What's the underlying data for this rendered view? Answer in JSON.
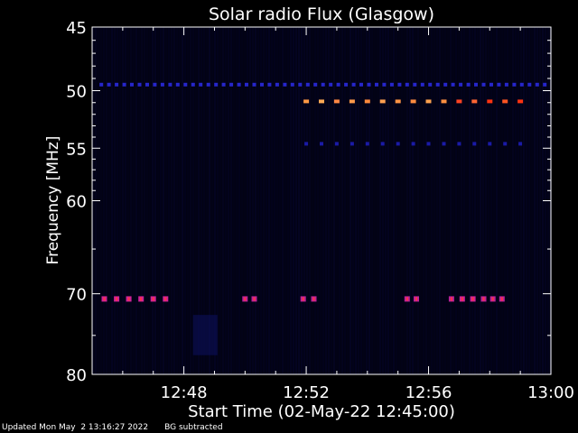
{
  "chart_data": {
    "type": "heatmap",
    "title": "Solar radio Flux (Glasgow)",
    "ylabel": "Frequency [MHz]",
    "xlabel": "Start Time (02-May-22 12:45:00)",
    "x_range_minutes": [
      0,
      15
    ],
    "x_ticks": [
      {
        "label": "12:48",
        "minute": 3
      },
      {
        "label": "12:52",
        "minute": 7
      },
      {
        "label": "12:56",
        "minute": 11
      },
      {
        "label": "13:00",
        "minute": 15
      }
    ],
    "y_range_mhz": [
      45,
      80
    ],
    "y_scale": "log",
    "y_ticks": [
      45,
      50,
      55,
      60,
      70,
      80
    ],
    "series": [
      {
        "frequency_mhz": 49.5,
        "t_start_min": 0.3,
        "t_end_min": 15,
        "step_min": 0.25,
        "color": "#2626cc"
      },
      {
        "frequency_mhz": 54.6,
        "t_start_min": 7.0,
        "t_end_min": 14.0,
        "step_min": 0.5,
        "color": "#1a1aa6"
      },
      {
        "frequency_mhz": 50.9,
        "t_start_min": 7.0,
        "t_end_min": 14.0,
        "step_min": 0.5,
        "colors": [
          "#ff9944",
          "#ffaa55",
          "#ff8844",
          "#ff9a4a",
          "#ff8a3c",
          "#ffa050",
          "#ff9444",
          "#ff8c40",
          "#ffa24e",
          "#ff9040",
          "#ff4422",
          "#ff6633",
          "#ff3311",
          "#ff5522",
          "#ff3311"
        ]
      }
    ],
    "bursts_70mhz": [
      {
        "t_min": 0.4,
        "color": "#cc2299"
      },
      {
        "t_min": 0.8,
        "color": "#cc2299"
      },
      {
        "t_min": 1.2,
        "color": "#cc2299"
      },
      {
        "t_min": 1.6,
        "color": "#cc2299"
      },
      {
        "t_min": 2.0,
        "color": "#cc2299"
      },
      {
        "t_min": 2.4,
        "color": "#cc2299"
      },
      {
        "t_min": 5.0,
        "color": "#bb2299"
      },
      {
        "t_min": 5.3,
        "color": "#bb2299"
      },
      {
        "t_min": 6.9,
        "color": "#bb2299"
      },
      {
        "t_min": 7.25,
        "color": "#bb2299"
      },
      {
        "t_min": 10.3,
        "color": "#bb2299"
      },
      {
        "t_min": 10.6,
        "color": "#bb2299"
      },
      {
        "t_min": 11.75,
        "color": "#bb2299"
      },
      {
        "t_min": 12.1,
        "color": "#cc2299"
      },
      {
        "t_min": 12.45,
        "color": "#cc2299"
      },
      {
        "t_min": 12.8,
        "color": "#bb2299"
      },
      {
        "t_min": 13.1,
        "color": "#bb2299"
      },
      {
        "t_min": 13.4,
        "color": "#bb2299"
      }
    ]
  },
  "footer": {
    "updated": "Updated Mon May  2 13:16:27 2022",
    "note": "BG subtracted"
  }
}
